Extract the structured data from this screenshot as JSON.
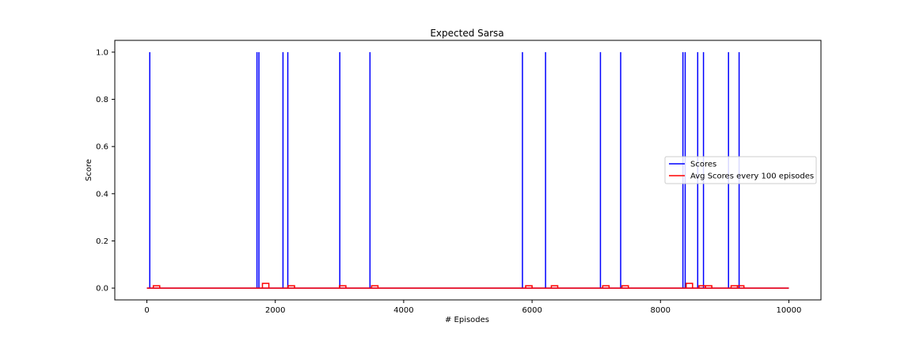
{
  "chart_data": {
    "type": "line",
    "title": "Expected Sarsa",
    "xlabel": "# Episodes",
    "ylabel": "Score",
    "xlim": [
      -500,
      10500
    ],
    "ylim": [
      -0.05,
      1.05
    ],
    "xticks": [
      0,
      2000,
      4000,
      6000,
      8000,
      10000
    ],
    "yticks": [
      0.0,
      0.2,
      0.4,
      0.6,
      0.8,
      1.0
    ],
    "xtick_labels": [
      "0",
      "2000",
      "4000",
      "6000",
      "8000",
      "10000"
    ],
    "ytick_labels": [
      "0.0",
      "0.2",
      "0.4",
      "0.6",
      "0.8",
      "1.0"
    ],
    "grid": false,
    "legend_position": "center-right",
    "x_range": [
      0,
      10000
    ],
    "series": [
      {
        "name": "Scores",
        "color": "#0000ff",
        "kind": "spikes",
        "baseline": 0,
        "spike_value": 1,
        "spike_x": [
          45,
          1715,
          1745,
          2120,
          2195,
          3005,
          3475,
          5850,
          6210,
          7065,
          7380,
          8350,
          8385,
          8580,
          8670,
          9060,
          9225
        ]
      },
      {
        "name": "Avg Scores every 100 episodes",
        "color": "#ff0000",
        "kind": "steps",
        "baseline": 0,
        "step_width": 100,
        "steps": [
          {
            "x": 100,
            "value": 0.01
          },
          {
            "x": 1800,
            "value": 0.02
          },
          {
            "x": 2200,
            "value": 0.01
          },
          {
            "x": 3000,
            "value": 0.01
          },
          {
            "x": 3500,
            "value": 0.01
          },
          {
            "x": 5900,
            "value": 0.01
          },
          {
            "x": 6300,
            "value": 0.01
          },
          {
            "x": 7100,
            "value": 0.01
          },
          {
            "x": 7400,
            "value": 0.01
          },
          {
            "x": 8400,
            "value": 0.02
          },
          {
            "x": 8600,
            "value": 0.01
          },
          {
            "x": 8700,
            "value": 0.01
          },
          {
            "x": 9100,
            "value": 0.01
          },
          {
            "x": 9200,
            "value": 0.01
          }
        ]
      }
    ]
  }
}
